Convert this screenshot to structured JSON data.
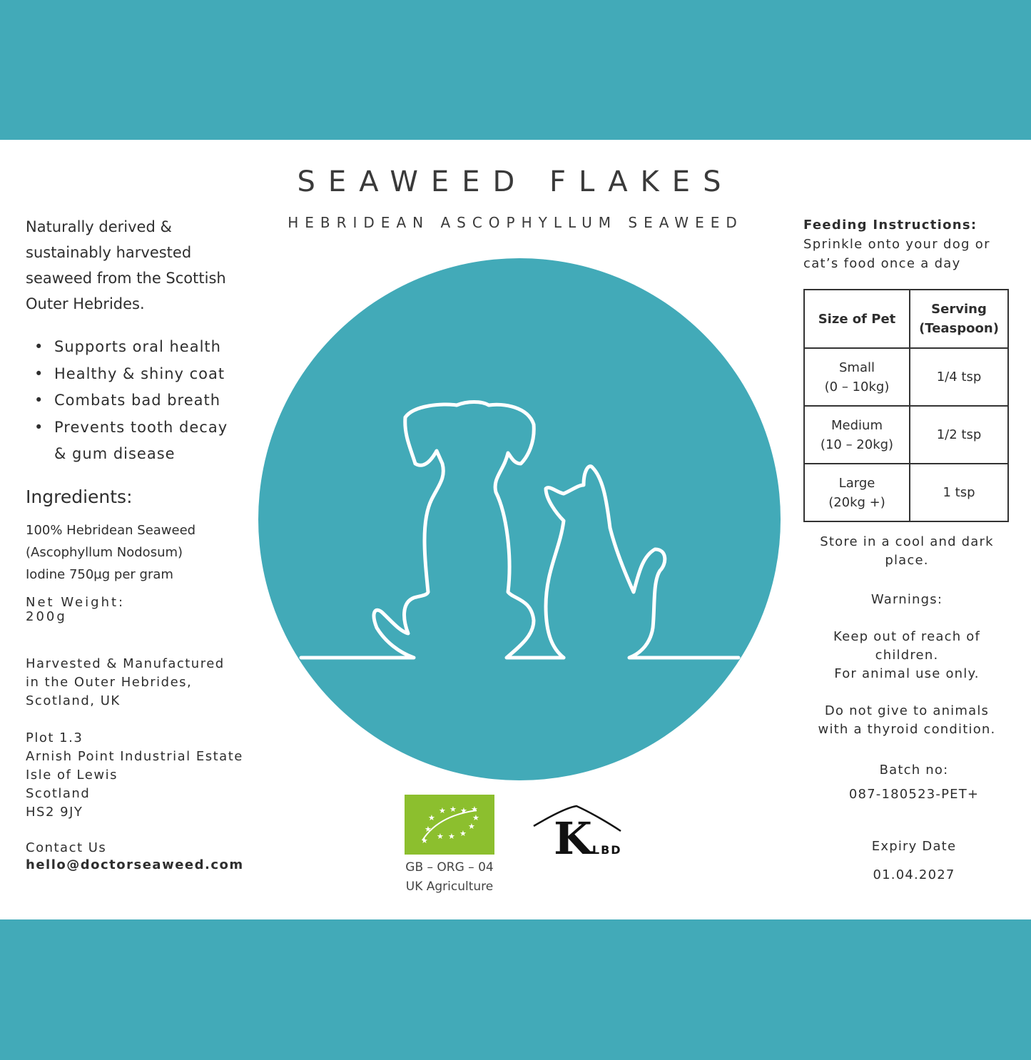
{
  "colors": {
    "brand_teal": "#42aab8",
    "organic_green": "#8cbf2e"
  },
  "title": "SEAWEED FLAKES",
  "subtitle": "HEBRIDEAN ASCOPHYLLUM SEAWEED",
  "intro": "Naturally derived & sustainably harvested seaweed from the Scottish Outer Hebrides.",
  "benefits": [
    "Supports oral health",
    "Healthy & shiny coat",
    "Combats bad breath",
    "Prevents tooth decay",
    "& gum disease"
  ],
  "ingredients": {
    "heading": "Ingredients:",
    "lines": [
      "100% Hebridean Seaweed",
      "(Ascophyllum Nodosum)",
      "Iodine 750µg per gram"
    ]
  },
  "net_weight": {
    "label": "Net Weight:",
    "value": "200g"
  },
  "origin": [
    "Harvested & Manufactured",
    "in the Outer Hebrides,",
    "Scotland, UK"
  ],
  "address": [
    "Plot 1.3",
    "Arnish Point Industrial Estate",
    "Isle of Lewis",
    "Scotland",
    "HS2 9JY"
  ],
  "contact": {
    "label": "Contact Us",
    "email": "hello@doctorseaweed.com"
  },
  "feeding": {
    "heading": "Feeding Instructions:",
    "text": [
      "Sprinkle onto your dog or",
      "cat’s food once a day"
    ]
  },
  "table": {
    "headers": [
      [
        "Size of Pet"
      ],
      [
        "Serving",
        "(Teaspoon)"
      ]
    ],
    "rows": [
      {
        "size": [
          "Small",
          "(0 – 10kg)"
        ],
        "serving": "1/4 tsp"
      },
      {
        "size": [
          "Medium",
          "(10 – 20kg)"
        ],
        "serving": "1/2 tsp"
      },
      {
        "size": [
          "Large",
          "(20kg +)"
        ],
        "serving": "1 tsp"
      }
    ]
  },
  "storage": [
    "Store in a cool and dark",
    "place."
  ],
  "warnings": {
    "heading": "Warnings:",
    "lines": [
      "Keep out of reach of",
      "children.",
      "For animal use only."
    ],
    "thyroid": [
      "Do not give to animals",
      "with a thyroid condition."
    ]
  },
  "batch": {
    "label": "Batch no:",
    "value": "087-180523-PET+"
  },
  "expiry": {
    "label": "Expiry Date",
    "value": "01.04.2027"
  },
  "organic": {
    "code": "GB – ORG – 04",
    "origin": "UK Agriculture"
  },
  "klbd_logo_text": "KLBD"
}
